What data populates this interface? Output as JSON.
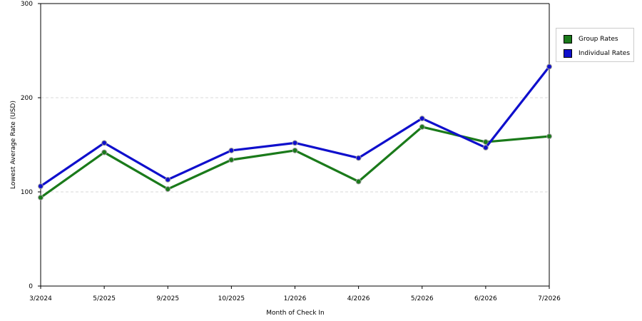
{
  "chart_data": {
    "type": "line",
    "xlabel": "Month of Check In",
    "ylabel": "Lowest Average Rate (USD)",
    "ylim": [
      0,
      300
    ],
    "yticks": [
      0,
      100,
      200,
      300
    ],
    "grid": "dashed horizontal at y ticks",
    "legend_position": "right",
    "categories": [
      "3/2024",
      "5/2025",
      "9/2025",
      "10/2025",
      "1/2026",
      "4/2026",
      "5/2026",
      "6/2026",
      "7/2026"
    ],
    "series": [
      {
        "name": "Group Rates",
        "color": "#1a7a1a",
        "values": [
          94,
          142,
          103,
          134,
          144,
          111,
          169,
          153,
          159
        ]
      },
      {
        "name": "Individual Rates",
        "color": "#0f0fcc",
        "values": [
          106,
          152,
          113,
          144,
          152,
          136,
          178,
          147,
          233
        ]
      }
    ]
  }
}
